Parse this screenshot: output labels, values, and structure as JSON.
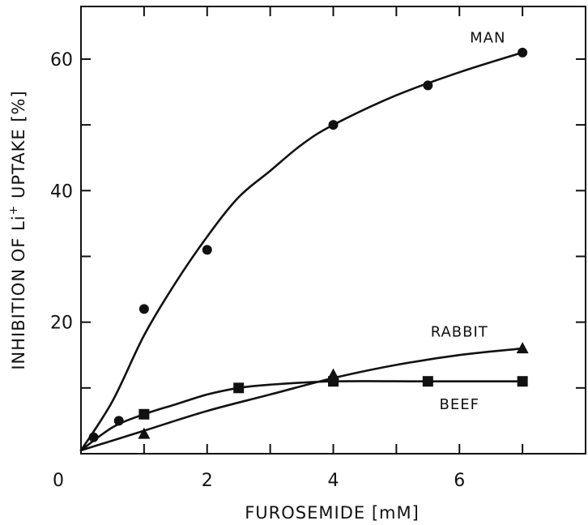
{
  "chart_data": {
    "type": "line",
    "title": "",
    "xlabel": "FUROSEMIDE [mM]",
    "ylabel_parts": [
      "INHIBITION OF Li",
      "+",
      " UPTAKE [%]"
    ],
    "xlim": [
      0,
      8
    ],
    "ylim": [
      0,
      68
    ],
    "x_ticks": [
      0,
      2,
      4,
      6
    ],
    "x_minor_ticks": [
      1,
      3,
      5,
      7
    ],
    "y_ticks": [
      20,
      40,
      60
    ],
    "y_minor_ticks": [
      10,
      30,
      50
    ],
    "grid": false,
    "legend": "labels placed next to curves",
    "series": [
      {
        "name": "MAN",
        "marker": "circle",
        "x": [
          0.2,
          0.6,
          1.0,
          2.0,
          4.0,
          5.5,
          7.0
        ],
        "y": [
          2.5,
          5.0,
          22.0,
          31.0,
          50.0,
          56.0,
          61.0
        ],
        "curve": [
          [
            0,
            0.5
          ],
          [
            0.5,
            8
          ],
          [
            1,
            18
          ],
          [
            1.5,
            26
          ],
          [
            2,
            33
          ],
          [
            2.5,
            39
          ],
          [
            3,
            43
          ],
          [
            3.5,
            47
          ],
          [
            4,
            50
          ],
          [
            5,
            54.5
          ],
          [
            6,
            58
          ],
          [
            7,
            61
          ]
        ]
      },
      {
        "name": "RABBIT",
        "marker": "triangle",
        "x": [
          1.0,
          4.0,
          7.0
        ],
        "y": [
          3.0,
          12.0,
          16.0
        ],
        "curve": [
          [
            0,
            0.5
          ],
          [
            1,
            3.5
          ],
          [
            2,
            6.5
          ],
          [
            3,
            9
          ],
          [
            4,
            11.5
          ],
          [
            5,
            13.5
          ],
          [
            6,
            15
          ],
          [
            7,
            16
          ]
        ]
      },
      {
        "name": "BEEF",
        "marker": "square",
        "x": [
          1.0,
          2.5,
          4.0,
          5.5,
          7.0
        ],
        "y": [
          6.0,
          10.0,
          11.0,
          11.0,
          11.0
        ],
        "curve": [
          [
            0,
            0.5
          ],
          [
            0.5,
            4
          ],
          [
            1,
            6
          ],
          [
            1.5,
            7.5
          ],
          [
            2,
            9
          ],
          [
            2.5,
            10
          ],
          [
            3,
            10.5
          ],
          [
            4,
            11
          ],
          [
            5.5,
            11
          ],
          [
            7,
            11
          ]
        ]
      }
    ],
    "labels": [
      {
        "text": "MAN",
        "x": 6.45,
        "y": 62.5
      },
      {
        "text": "RABBIT",
        "x": 6.0,
        "y": 17.8
      },
      {
        "text": "BEEF",
        "x": 6.0,
        "y": 6.8
      }
    ]
  }
}
